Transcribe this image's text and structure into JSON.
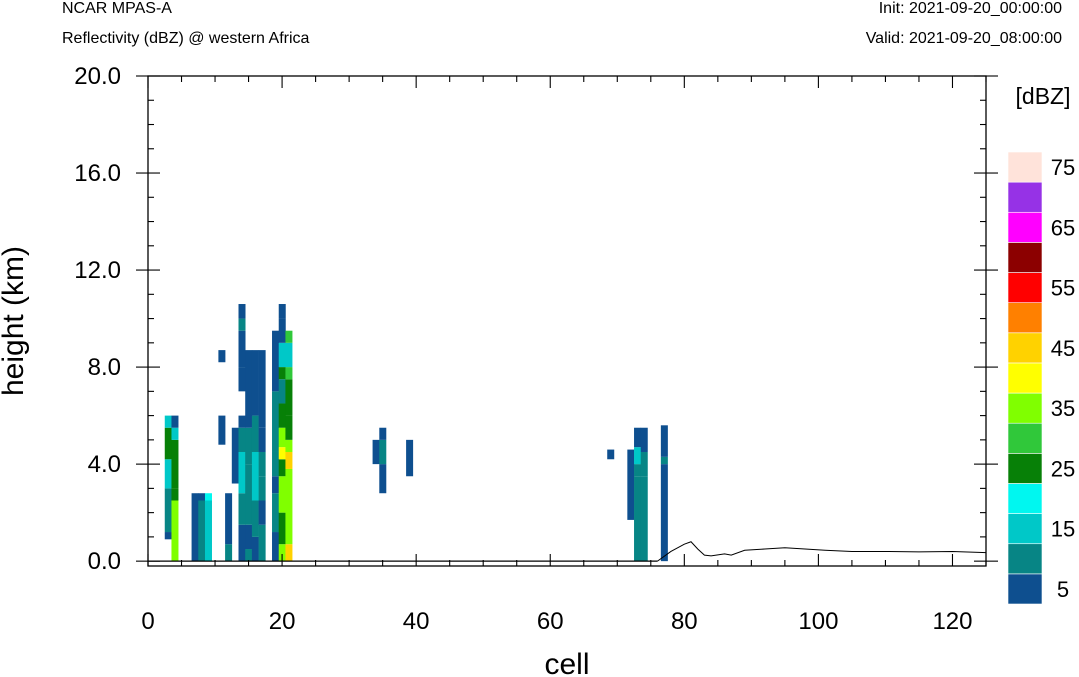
{
  "header": {
    "model": "NCAR MPAS-A",
    "field": "Reflectivity (dBZ) @ western Africa",
    "init": "Init: 2021-09-20_00:00:00",
    "valid": "Valid: 2021-09-20_08:00:00"
  },
  "chart_data": {
    "type": "heatmap",
    "title": "Reflectivity (dBZ) @ western Africa",
    "xlabel": "cell",
    "ylabel": "height (km)",
    "xlim": [
      0,
      125
    ],
    "ylim": [
      -0.2,
      20.0
    ],
    "xticks": [
      0,
      20,
      40,
      60,
      80,
      100,
      120
    ],
    "yticks": [
      0.0,
      4.0,
      8.0,
      12.0,
      16.0,
      20.0
    ],
    "ytick_labels": [
      "0.0",
      "4.0",
      "8.0",
      "12.0",
      "16.0",
      "20.0"
    ],
    "colorbar": {
      "label": "[dBZ]",
      "levels": [
        5,
        10,
        15,
        20,
        25,
        30,
        35,
        40,
        45,
        50,
        55,
        60,
        65,
        70,
        75
      ],
      "tick_labels": [
        "5",
        "15",
        "25",
        "35",
        "45",
        "55",
        "65",
        "75"
      ],
      "colors": [
        "#0e4f8f",
        "#078585",
        "#00c8c8",
        "#00f7f0",
        "#078007",
        "#30c83a",
        "#80ff00",
        "#ffff00",
        "#ffd200",
        "#ff8000",
        "#ff0000",
        "#8c0000",
        "#ff00ff",
        "#9632e6",
        "#ffe3da"
      ]
    },
    "columns": [
      {
        "x": 3,
        "segs": [
          [
            0.9,
            1.2,
            5
          ],
          [
            1.2,
            3.0,
            10
          ],
          [
            3.0,
            4.2,
            15
          ],
          [
            4.2,
            5.5,
            25
          ],
          [
            5.5,
            6.0,
            15
          ]
        ]
      },
      {
        "x": 4,
        "segs": [
          [
            0.0,
            2.5,
            35
          ],
          [
            2.5,
            3.0,
            25
          ],
          [
            3.0,
            5.0,
            25
          ],
          [
            5.0,
            5.5,
            15
          ],
          [
            5.5,
            6.0,
            5
          ]
        ]
      },
      {
        "x": 7,
        "segs": [
          [
            0.0,
            2.8,
            5
          ]
        ]
      },
      {
        "x": 8,
        "segs": [
          [
            0.0,
            2.5,
            10
          ],
          [
            2.5,
            2.8,
            5
          ]
        ]
      },
      {
        "x": 9,
        "segs": [
          [
            0.0,
            2.5,
            15
          ],
          [
            2.5,
            2.8,
            20
          ]
        ]
      },
      {
        "x": 11,
        "segs": [
          [
            8.2,
            8.7,
            5
          ],
          [
            4.8,
            6.0,
            5
          ]
        ]
      },
      {
        "x": 12,
        "segs": [
          [
            0.0,
            0.7,
            10
          ],
          [
            0.7,
            2.8,
            5
          ]
        ]
      },
      {
        "x": 13,
        "segs": [
          [
            3.2,
            5.5,
            5
          ]
        ]
      },
      {
        "x": 14,
        "segs": [
          [
            0.0,
            1.5,
            5
          ],
          [
            1.5,
            2.8,
            10
          ],
          [
            2.8,
            4.5,
            15
          ],
          [
            4.5,
            5.5,
            10
          ],
          [
            5.5,
            6.0,
            5
          ],
          [
            7.0,
            8.0,
            5
          ],
          [
            8.0,
            9.5,
            5
          ],
          [
            9.5,
            10.0,
            10
          ],
          [
            10.0,
            10.6,
            5
          ]
        ]
      },
      {
        "x": 15,
        "segs": [
          [
            0.0,
            0.5,
            10
          ],
          [
            0.5,
            1.5,
            5
          ],
          [
            1.5,
            4.0,
            10
          ],
          [
            4.0,
            5.5,
            10
          ],
          [
            5.5,
            8.7,
            5
          ]
        ]
      },
      {
        "x": 16,
        "segs": [
          [
            0.0,
            1.0,
            5
          ],
          [
            1.0,
            2.5,
            10
          ],
          [
            2.5,
            4.5,
            15
          ],
          [
            4.5,
            6.0,
            10
          ],
          [
            6.0,
            8.7,
            5
          ]
        ]
      },
      {
        "x": 17,
        "segs": [
          [
            0.0,
            1.5,
            10
          ],
          [
            1.5,
            2.5,
            5
          ],
          [
            2.5,
            3.5,
            10
          ],
          [
            3.5,
            4.5,
            10
          ],
          [
            4.5,
            5.5,
            5
          ],
          [
            5.5,
            8.7,
            5
          ]
        ]
      },
      {
        "x": 19,
        "segs": [
          [
            0.0,
            1.2,
            5
          ],
          [
            1.2,
            2.8,
            10
          ],
          [
            2.8,
            3.5,
            5
          ],
          [
            3.5,
            4.5,
            10
          ],
          [
            4.5,
            7.0,
            10
          ],
          [
            7.0,
            9.5,
            5
          ]
        ]
      },
      {
        "x": 20,
        "segs": [
          [
            0.0,
            0.7,
            35
          ],
          [
            0.7,
            2.0,
            25
          ],
          [
            2.0,
            3.5,
            35
          ],
          [
            3.5,
            4.2,
            25
          ],
          [
            4.2,
            4.7,
            40
          ],
          [
            4.7,
            5.5,
            35
          ],
          [
            5.5,
            6.5,
            25
          ],
          [
            6.5,
            7.5,
            10
          ],
          [
            7.5,
            8.0,
            25
          ],
          [
            8.0,
            9.0,
            15
          ],
          [
            9.0,
            10.0,
            5
          ],
          [
            10.0,
            10.6,
            5
          ]
        ]
      },
      {
        "x": 21,
        "segs": [
          [
            0.0,
            0.7,
            45
          ],
          [
            0.7,
            3.8,
            35
          ],
          [
            3.8,
            4.5,
            45
          ],
          [
            4.5,
            5.0,
            35
          ],
          [
            5.0,
            6.0,
            25
          ],
          [
            6.0,
            7.5,
            25
          ],
          [
            7.5,
            8.0,
            30
          ],
          [
            8.0,
            9.0,
            15
          ],
          [
            9.0,
            9.5,
            30
          ]
        ]
      },
      {
        "x": 34,
        "segs": [
          [
            4.0,
            5.0,
            5
          ]
        ]
      },
      {
        "x": 35,
        "segs": [
          [
            2.8,
            4.0,
            5
          ],
          [
            4.0,
            5.0,
            10
          ],
          [
            5.0,
            5.5,
            5
          ]
        ]
      },
      {
        "x": 39,
        "segs": [
          [
            3.5,
            5.0,
            5
          ]
        ]
      },
      {
        "x": 69,
        "segs": [
          [
            4.2,
            4.6,
            5
          ]
        ]
      },
      {
        "x": 72,
        "segs": [
          [
            1.7,
            4.6,
            5
          ]
        ]
      },
      {
        "x": 73,
        "segs": [
          [
            0.0,
            3.5,
            10
          ],
          [
            3.5,
            4.0,
            10
          ],
          [
            4.0,
            4.7,
            15
          ],
          [
            4.7,
            5.5,
            5
          ]
        ]
      },
      {
        "x": 74,
        "segs": [
          [
            0.0,
            3.5,
            10
          ],
          [
            3.5,
            4.5,
            10
          ],
          [
            4.5,
            5.5,
            5
          ]
        ]
      },
      {
        "x": 77,
        "segs": [
          [
            0.0,
            4.0,
            5
          ],
          [
            4.0,
            4.3,
            10
          ],
          [
            4.3,
            5.6,
            5
          ]
        ]
      }
    ],
    "terrain": [
      [
        76,
        0.0
      ],
      [
        78,
        0.4
      ],
      [
        80,
        0.7
      ],
      [
        81,
        0.8
      ],
      [
        82,
        0.5
      ],
      [
        83,
        0.25
      ],
      [
        84,
        0.22
      ],
      [
        86,
        0.3
      ],
      [
        87,
        0.25
      ],
      [
        89,
        0.45
      ],
      [
        92,
        0.5
      ],
      [
        95,
        0.55
      ],
      [
        98,
        0.5
      ],
      [
        101,
        0.45
      ],
      [
        105,
        0.4
      ],
      [
        110,
        0.4
      ],
      [
        115,
        0.38
      ],
      [
        120,
        0.4
      ],
      [
        125,
        0.35
      ]
    ]
  }
}
